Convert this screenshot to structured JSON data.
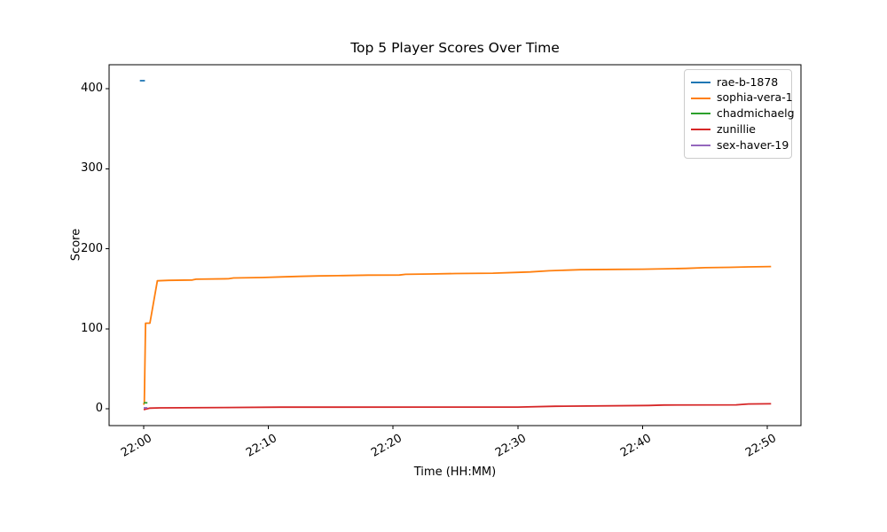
{
  "title": "Top 5 Player Scores Over Time",
  "chart_data": {
    "type": "line",
    "title": "Top 5 Player Scores Over Time",
    "xlabel": "Time (HH:MM)",
    "ylabel": "Score",
    "x_unit": "minutes after 22:00",
    "xlim": [
      -2.77,
      52.7
    ],
    "ylim": [
      -21,
      430
    ],
    "grid": false,
    "legend_position": "upper right",
    "xticks": [
      {
        "pos": 0,
        "label": "22:00"
      },
      {
        "pos": 10,
        "label": "22:10"
      },
      {
        "pos": 20,
        "label": "22:20"
      },
      {
        "pos": 30,
        "label": "22:30"
      },
      {
        "pos": 40,
        "label": "22:40"
      },
      {
        "pos": 50,
        "label": "22:50"
      }
    ],
    "yticks": [
      {
        "pos": 0,
        "label": "0"
      },
      {
        "pos": 100,
        "label": "100"
      },
      {
        "pos": 200,
        "label": "200"
      },
      {
        "pos": 300,
        "label": "300"
      },
      {
        "pos": 400,
        "label": "400"
      }
    ],
    "series": [
      {
        "name": "rae-b-1878",
        "color": "#1f77b4",
        "points": [
          [
            -0.3,
            410
          ],
          [
            0.1,
            410
          ]
        ]
      },
      {
        "name": "sophia-vera-1",
        "color": "#ff7f0e",
        "points": [
          [
            0,
            5
          ],
          [
            0.05,
            8
          ],
          [
            0.15,
            107
          ],
          [
            0.5,
            107
          ],
          [
            1.1,
            160
          ],
          [
            2,
            160.5
          ],
          [
            3.9,
            161
          ],
          [
            4.2,
            162
          ],
          [
            6.8,
            162.5
          ],
          [
            7.2,
            163.5
          ],
          [
            9.5,
            164
          ],
          [
            11,
            164.8
          ],
          [
            12.5,
            165.5
          ],
          [
            14,
            166
          ],
          [
            16,
            166.5
          ],
          [
            18,
            167
          ],
          [
            20.5,
            167.2
          ],
          [
            21,
            168
          ],
          [
            23,
            168.5
          ],
          [
            25,
            169
          ],
          [
            28,
            169.5
          ],
          [
            30,
            170.5
          ],
          [
            31,
            171
          ],
          [
            32.5,
            172.5
          ],
          [
            33.5,
            173
          ],
          [
            35,
            173.8
          ],
          [
            38,
            174.2
          ],
          [
            40,
            174.5
          ],
          [
            42,
            175
          ],
          [
            43.5,
            175.5
          ],
          [
            45,
            176.3
          ],
          [
            47,
            176.8
          ],
          [
            48.5,
            177.3
          ],
          [
            50.3,
            177.8
          ]
        ]
      },
      {
        "name": "chadmichaelg",
        "color": "#2ca02c",
        "points": [
          [
            0,
            7.5
          ],
          [
            0.3,
            7.5
          ]
        ]
      },
      {
        "name": "zunillie",
        "color": "#d62728",
        "points": [
          [
            0,
            -1
          ],
          [
            0.5,
            0.8
          ],
          [
            1.3,
            1.2
          ],
          [
            6.6,
            1.6
          ],
          [
            11,
            2
          ],
          [
            30,
            2.2
          ],
          [
            33,
            3.2
          ],
          [
            40.5,
            4.2
          ],
          [
            41.7,
            4.7
          ],
          [
            47.5,
            4.9
          ],
          [
            48.5,
            6
          ],
          [
            50.3,
            6.3
          ]
        ]
      },
      {
        "name": "sex-haver-19",
        "color": "#9467bd",
        "points": [
          [
            0,
            1.2
          ],
          [
            0.3,
            1.2
          ]
        ]
      }
    ]
  }
}
